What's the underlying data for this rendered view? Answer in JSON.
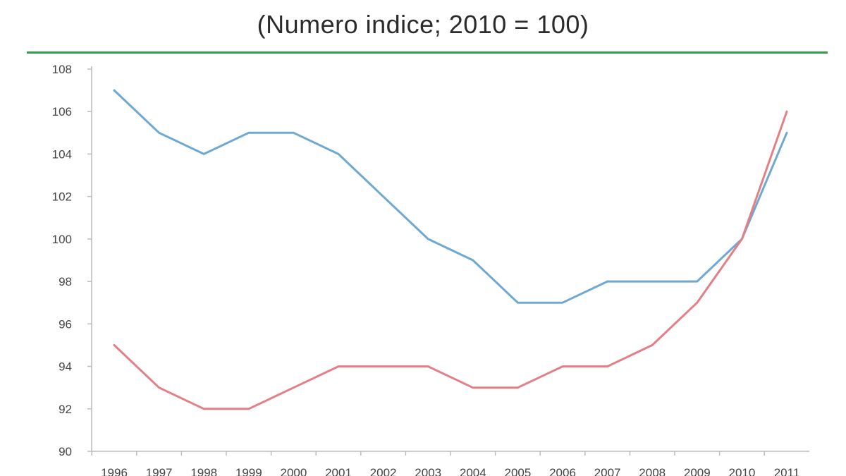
{
  "header": {
    "subtitle": "(Numero indice; 2010 = 100)"
  },
  "colors": {
    "rule": "#2e9e48",
    "series_1": "#6fa8d0",
    "series_2": "#e37f86",
    "axis": "#bcbcbc"
  },
  "chart_data": {
    "type": "line",
    "title": "",
    "subtitle": "(Numero indice; 2010 = 100)",
    "xlabel": "",
    "ylabel": "",
    "x": [
      "1996",
      "1997",
      "1998",
      "1999",
      "2000",
      "2001",
      "2002",
      "2003",
      "2004",
      "2005",
      "2006",
      "2007",
      "2008",
      "2009",
      "2010",
      "2011"
    ],
    "ylim": [
      90,
      108
    ],
    "yticks": [
      90,
      92,
      94,
      96,
      98,
      100,
      102,
      104,
      106,
      108
    ],
    "grid": false,
    "legend": "none",
    "series": [
      {
        "color": "#6fa8d0",
        "values": [
          107,
          105,
          104,
          105,
          105,
          104,
          102,
          100,
          99,
          97,
          97,
          98,
          98,
          98,
          100,
          105
        ]
      },
      {
        "color": "#e37f86",
        "values": [
          95,
          93,
          92,
          92,
          93,
          94,
          94,
          94,
          93,
          93,
          94,
          94,
          95,
          97,
          100,
          106
        ]
      }
    ]
  }
}
